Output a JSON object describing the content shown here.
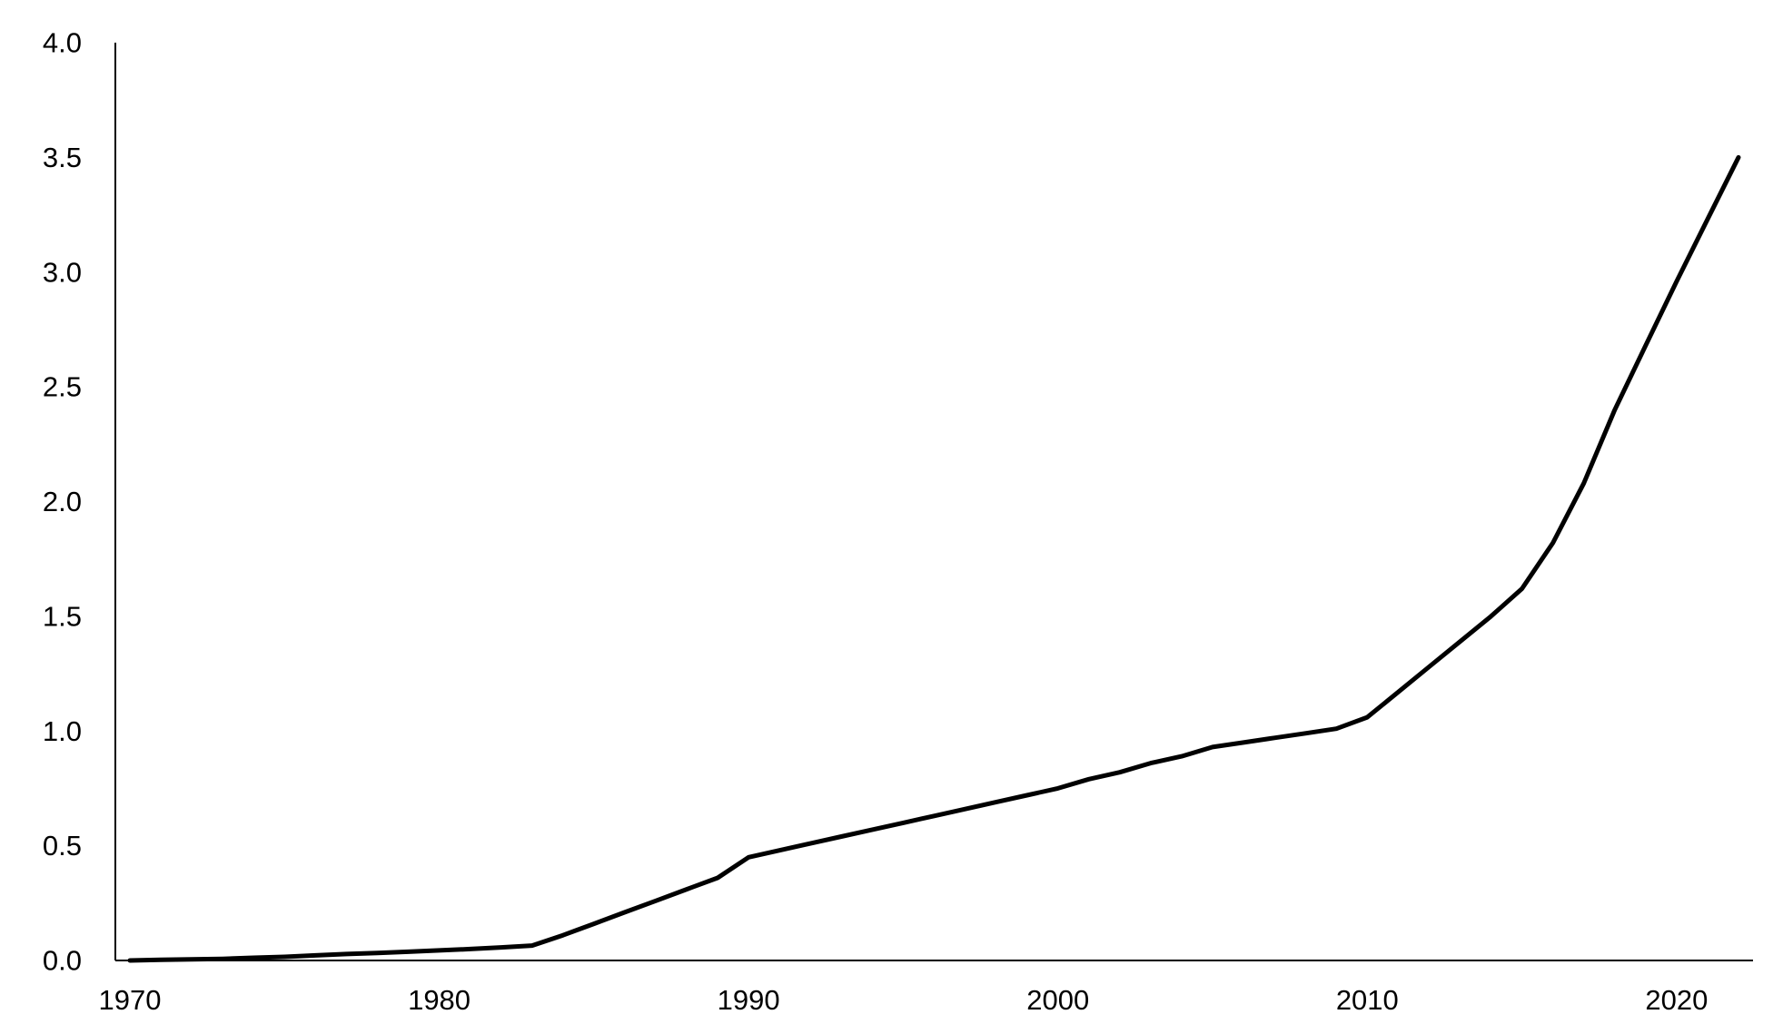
{
  "chart_data": {
    "type": "line",
    "title": "",
    "xlabel": "",
    "ylabel": "",
    "xlim": [
      1970,
      2022
    ],
    "ylim": [
      0,
      4.0
    ],
    "x_ticks": [
      1970,
      1980,
      1990,
      2000,
      2010,
      2020
    ],
    "x_tick_labels": [
      "1970",
      "1980",
      "1990",
      "2000",
      "2010",
      "2020"
    ],
    "y_ticks": [
      0,
      0.5,
      1.0,
      1.5,
      2.0,
      2.5,
      3.0,
      3.5,
      4.0
    ],
    "y_tick_labels": [
      "0.0",
      "0.5",
      "1.0",
      "1.5",
      "2.0",
      "2.5",
      "3.0",
      "3.5",
      "4.0"
    ],
    "grid": false,
    "legend": "none",
    "line_color": "#000000",
    "series": [
      {
        "x": [
          1970,
          1971,
          1972,
          1973,
          1974,
          1975,
          1976,
          1977,
          1978,
          1979,
          1980,
          1981,
          1982,
          1983,
          1984,
          1985,
          1986,
          1987,
          1988,
          1989,
          1990,
          1991,
          1992,
          1993,
          1994,
          1995,
          1996,
          1997,
          1998,
          1999,
          2000,
          2001,
          2002,
          2003,
          2004,
          2005,
          2006,
          2007,
          2008,
          2009,
          2010,
          2011,
          2012,
          2013,
          2014,
          2015,
          2016,
          2017,
          2018,
          2019,
          2020,
          2021,
          2022
        ],
        "values": [
          0.0,
          0.003,
          0.005,
          0.007,
          0.012,
          0.016,
          0.022,
          0.028,
          0.033,
          0.038,
          0.044,
          0.05,
          0.057,
          0.065,
          0.11,
          0.16,
          0.21,
          0.26,
          0.31,
          0.36,
          0.45,
          0.48,
          0.51,
          0.54,
          0.57,
          0.6,
          0.63,
          0.66,
          0.69,
          0.72,
          0.75,
          0.79,
          0.82,
          0.86,
          0.89,
          0.93,
          0.95,
          0.97,
          0.99,
          1.01,
          1.06,
          1.17,
          1.28,
          1.39,
          1.5,
          1.62,
          1.82,
          2.08,
          2.4,
          2.68,
          2.96,
          3.23,
          3.5
        ]
      }
    ]
  }
}
